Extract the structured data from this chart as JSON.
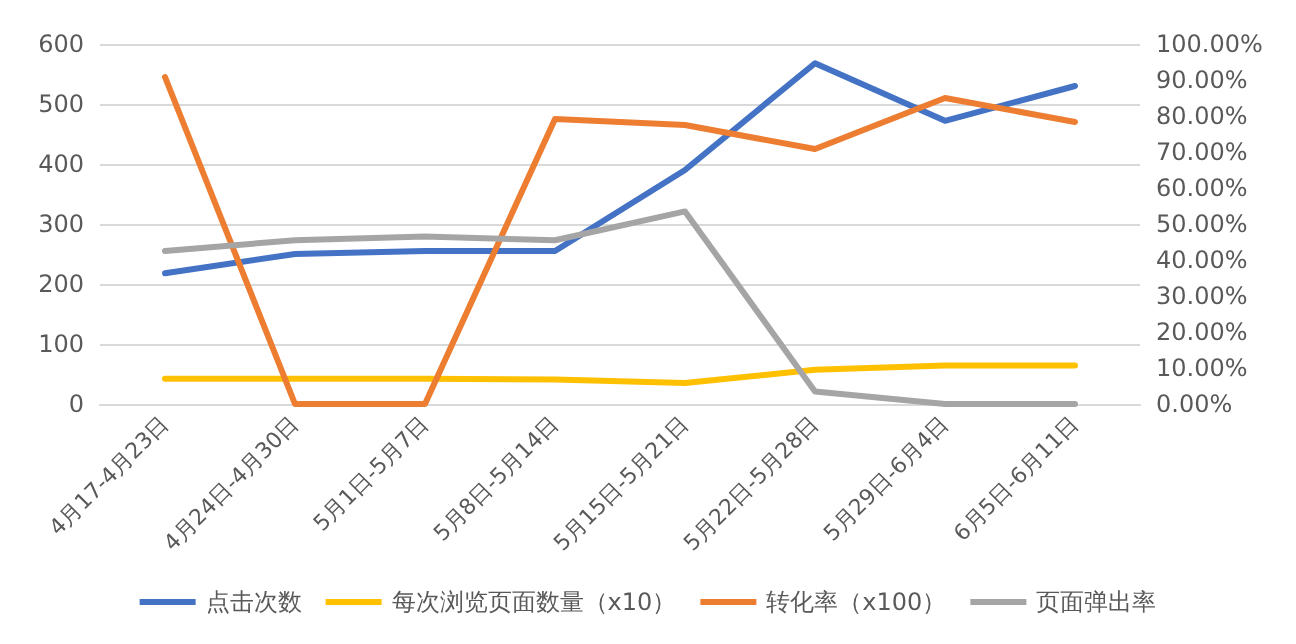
{
  "chart_data": {
    "type": "line",
    "categories": [
      "4月17-4月23日",
      "4月24日-4月30日",
      "5月1日-5月7日",
      "5月8日-5月14日",
      "5月15日-5月21日",
      "5月22日-5月28日",
      "5月29日-6月4日",
      "6月5日-6月11日"
    ],
    "series": [
      {
        "name": "点击次数",
        "color": "#4472c4",
        "values": [
          218,
          250,
          255,
          255,
          390,
          568,
          472,
          530
        ]
      },
      {
        "name": "每次浏览页面数量（x10）",
        "color": "#ffc000",
        "values": [
          42,
          42,
          42,
          41,
          35,
          57,
          64,
          64
        ]
      },
      {
        "name": "转化率（x100）",
        "color": "#ed7d31",
        "values": [
          545,
          0,
          0,
          475,
          465,
          425,
          510,
          470
        ]
      },
      {
        "name": "页面弹出率",
        "color": "#a5a5a5",
        "axis": "y2",
        "values": [
          42.5,
          45.5,
          46.5,
          45.5,
          53.5,
          3.5,
          0,
          0
        ]
      }
    ],
    "ylim": [
      0,
      600
    ],
    "yticks": [
      0,
      100,
      200,
      300,
      400,
      500,
      600
    ],
    "y2lim": [
      0,
      100
    ],
    "y2ticks": [
      {
        "value": 0,
        "label": "0.00%"
      },
      {
        "value": 10,
        "label": "10.00%"
      },
      {
        "value": 20,
        "label": "20.00%"
      },
      {
        "value": 30,
        "label": "30.00%"
      },
      {
        "value": 40,
        "label": "40.00%"
      },
      {
        "value": 50,
        "label": "50.00%"
      },
      {
        "value": 60,
        "label": "60.00%"
      },
      {
        "value": 70,
        "label": "70.00%"
      },
      {
        "value": 80,
        "label": "80.00%"
      },
      {
        "value": 90,
        "label": "90.00%"
      },
      {
        "value": 100,
        "label": "100.00%"
      }
    ],
    "grid": "y",
    "legend": "bottom",
    "marker": "none",
    "line_style": "solid"
  }
}
